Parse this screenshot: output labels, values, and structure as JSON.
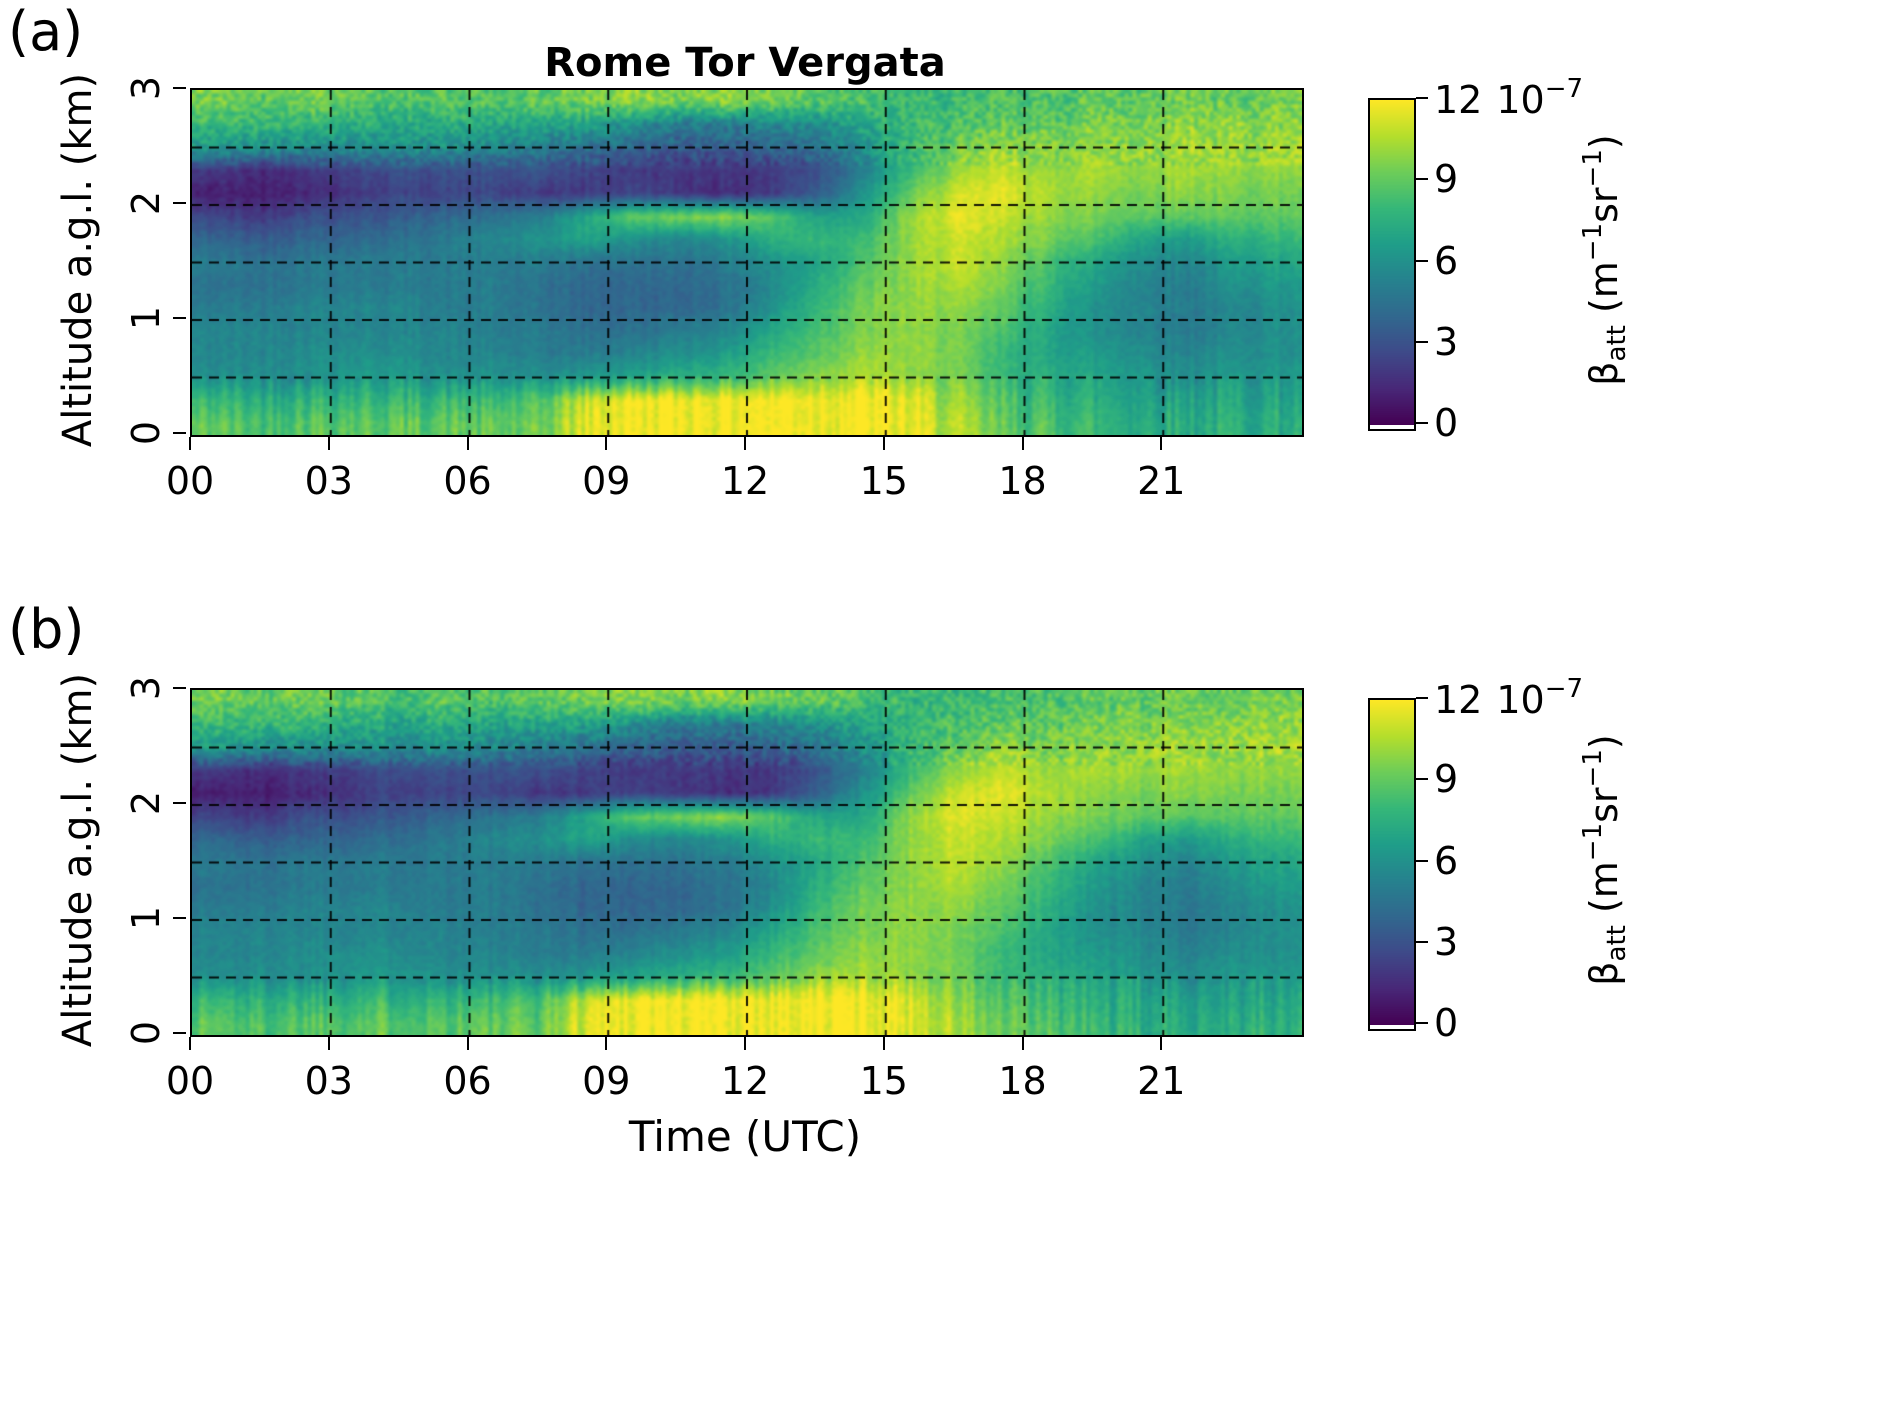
{
  "labels": {
    "panel_a": "(a)",
    "panel_b": "(b)",
    "title": "Rome Tor Vergata",
    "x_axis": "Time (UTC)",
    "y_axis": "Altitude a.g.l. (km)",
    "cb_beta": "β",
    "cb_sub": "att",
    "cb_units_open": " (m",
    "cb_sup1": "−1",
    "cb_sr": "sr",
    "cb_sup2": "−1",
    "cb_close": ")",
    "cb_exp_base": "10",
    "cb_exp_power": "−7"
  },
  "chart_data": {
    "type": "heatmap",
    "panels": [
      {
        "label": "(a)",
        "title": "Rome Tor Vergata"
      },
      {
        "label": "(b)",
        "title": ""
      }
    ],
    "x": {
      "label": "Time (UTC)",
      "range": [
        0,
        24
      ],
      "tick_values": [
        0,
        3,
        6,
        9,
        12,
        15,
        18,
        21
      ],
      "tick_labels": [
        "00",
        "03",
        "06",
        "09",
        "12",
        "15",
        "18",
        "21"
      ],
      "grid_interval_h": 3
    },
    "y": {
      "label": "Altitude a.g.l. (km)",
      "range": [
        0,
        3
      ],
      "tick_values": [
        0,
        1,
        2,
        3
      ],
      "tick_labels": [
        "0",
        "1",
        "2",
        "3"
      ],
      "grid_interval_km": 0.5
    },
    "colorbar": {
      "variable": "beta_att",
      "units": "m^-1 sr^-1",
      "scale_factor": "1e-7",
      "range": [
        0,
        12
      ],
      "tick_values": [
        0,
        3,
        6,
        9,
        12
      ],
      "tick_labels": [
        "0",
        "3",
        "6",
        "9",
        "12"
      ]
    },
    "colormap": {
      "name": "viridis",
      "stops": [
        "#440154",
        "#482878",
        "#3e4a89",
        "#31688e",
        "#26828e",
        "#1f9e89",
        "#35b779",
        "#6dcd59",
        "#b4de2c",
        "#fde725"
      ]
    },
    "grid": {
      "note": "Attenuated backscatter in 1e-7 m-1 sr-1; rows run top (2.9 km) to bottom (0.1 km); cols are hourly 0.5-23.5 UTC; panels (a) and (b) are visually identical and share this grid.",
      "time_hours": [
        0.5,
        1.5,
        2.5,
        3.5,
        4.5,
        5.5,
        6.5,
        7.5,
        8.5,
        9.5,
        10.5,
        11.5,
        12.5,
        13.5,
        14.5,
        15.5,
        16.5,
        17.5,
        18.5,
        19.5,
        20.5,
        21.5,
        22.5,
        23.5
      ],
      "altitude_km": [
        2.9,
        2.7,
        2.5,
        2.3,
        2.1,
        1.9,
        1.7,
        1.5,
        1.3,
        1.1,
        0.9,
        0.7,
        0.5,
        0.3,
        0.1
      ],
      "values": [
        [
          9.5,
          9,
          9.5,
          9,
          8.5,
          9,
          8.5,
          9,
          9.5,
          10,
          9.5,
          10,
          9.5,
          9,
          8.5,
          8,
          8,
          8.5,
          8.5,
          9,
          9,
          9.5,
          9,
          9.5
        ],
        [
          8,
          8,
          8,
          7.5,
          7,
          7.5,
          7,
          7,
          7,
          6,
          5,
          5,
          5.5,
          6,
          7,
          8,
          8.5,
          9,
          9,
          9.5,
          9.5,
          10,
          10,
          10
        ],
        [
          6.5,
          6,
          6,
          6,
          6,
          6,
          5.5,
          5,
          4.5,
          4,
          3.5,
          3.5,
          4,
          4.5,
          6,
          8,
          9,
          10,
          9.5,
          10,
          10,
          10.5,
          10,
          10.5
        ],
        [
          2,
          1.5,
          2,
          2.5,
          3,
          3,
          3,
          3,
          2.5,
          2,
          2,
          2,
          2,
          3,
          5,
          8,
          10,
          11,
          10,
          10.5,
          10,
          10.5,
          10,
          10
        ],
        [
          1,
          1,
          1.5,
          2,
          2.5,
          2.5,
          2.5,
          2,
          2,
          2.5,
          2,
          1.5,
          2,
          3.5,
          6,
          9,
          11,
          11.5,
          10.5,
          10,
          9.5,
          10,
          9.5,
          9.5
        ],
        [
          2.5,
          2,
          3,
          3,
          3.5,
          4,
          4.5,
          5,
          7,
          9,
          9.5,
          10,
          9,
          7,
          7,
          10,
          11.5,
          11,
          10,
          9.5,
          9,
          9,
          9,
          9
        ],
        [
          4,
          3.5,
          4,
          4,
          4.5,
          5,
          5.5,
          6,
          7,
          6,
          5.5,
          6,
          7.5,
          8,
          8,
          10,
          11,
          10.5,
          9.5,
          8.5,
          7,
          6.5,
          7.5,
          8
        ],
        [
          5,
          4.5,
          5,
          5,
          5,
          5,
          5,
          5,
          4.5,
          4.5,
          4.5,
          5,
          6,
          7,
          8.5,
          10,
          11,
          10,
          8.5,
          7,
          6,
          5.5,
          6.5,
          7
        ],
        [
          4.5,
          4.5,
          5,
          5,
          5,
          5,
          5,
          4.5,
          4,
          4,
          4,
          4.5,
          5.5,
          7.5,
          9,
          10,
          10.5,
          9.5,
          8,
          6.5,
          5.5,
          5,
          6,
          6.5
        ],
        [
          5,
          5,
          5.5,
          5.5,
          5.5,
          5,
          5,
          4.5,
          4,
          4,
          4,
          4.5,
          6,
          8,
          9.5,
          10,
          10,
          9,
          7.5,
          6,
          5.5,
          5,
          5.5,
          6
        ],
        [
          5.5,
          5.5,
          5.5,
          5.5,
          5.5,
          5.5,
          5,
          5,
          4.5,
          4.5,
          5,
          5.5,
          7,
          8.5,
          9.5,
          10,
          9.5,
          8.5,
          7,
          6,
          5.5,
          5,
          5.5,
          6
        ],
        [
          5.5,
          5.5,
          6,
          6,
          6,
          5.5,
          5.5,
          5,
          5,
          5.5,
          6,
          6.5,
          8,
          9,
          10,
          10,
          9.5,
          8,
          7,
          6.5,
          6,
          5.5,
          6,
          6
        ],
        [
          6,
          6,
          6,
          6.5,
          6.5,
          6,
          6,
          6,
          6.5,
          7,
          7.5,
          8,
          9,
          10,
          10.5,
          10,
          9.5,
          8,
          7.5,
          7,
          6.5,
          6,
          6.5,
          6.5
        ],
        [
          8,
          7.5,
          8,
          8,
          8,
          8,
          8,
          8.5,
          11,
          12,
          12,
          12,
          12,
          12,
          12,
          11.5,
          10,
          8.5,
          8,
          7.5,
          7,
          7,
          7,
          7
        ],
        [
          9,
          8.5,
          9,
          9,
          9,
          9,
          9,
          9,
          11.5,
          12,
          12,
          12,
          12,
          12,
          12,
          11.5,
          10.5,
          9,
          8.5,
          8,
          7.5,
          7.5,
          7.5,
          7.5
        ]
      ]
    }
  }
}
